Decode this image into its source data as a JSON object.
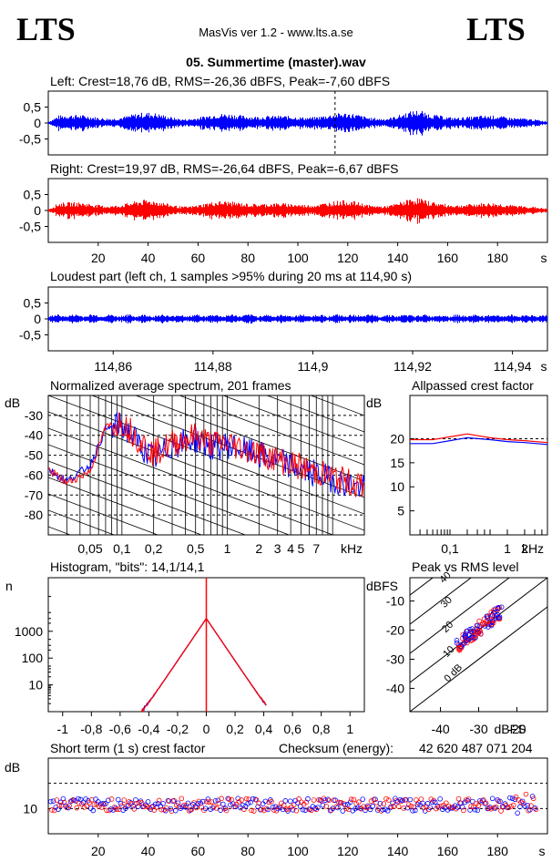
{
  "header": {
    "logo_left": "LTS",
    "logo_right": "LTS",
    "app_title": "MasVis ver 1.2 - www.lts.a.se",
    "file_title": "05. Summertime (master).wav"
  },
  "colors": {
    "left": "#0000ff",
    "right": "#ff0000",
    "grid": "#000000",
    "background": "#ffffff"
  },
  "chart_data": [
    {
      "id": "left-waveform",
      "type": "line",
      "title": "Left: Crest=18,76 dB, RMS=-26,36 dBFS, Peak=-7,60 dBFS",
      "yticks": [
        "0,5",
        "0",
        "-0,5"
      ],
      "ylim": [
        -1,
        1
      ],
      "xlim": [
        0,
        200
      ],
      "marker_x": 114.9,
      "color": "#0000ff"
    },
    {
      "id": "right-waveform",
      "type": "line",
      "title": "Right: Crest=19,97 dB, RMS=-26,64 dBFS, Peak=-6,67 dBFS",
      "yticks": [
        "0,5",
        "0",
        "-0,5"
      ],
      "ylim": [
        -1,
        1
      ],
      "xlim": [
        0,
        200
      ],
      "xticks": [
        "20",
        "40",
        "60",
        "80",
        "100",
        "120",
        "140",
        "160",
        "180"
      ],
      "xunit": "s",
      "color": "#ff0000"
    },
    {
      "id": "loudest-part",
      "type": "line",
      "title": "Loudest part (left  ch, 1 samples >95% during 20 ms at 114,90 s)",
      "yticks": [
        "0,5",
        "0",
        "-0,5"
      ],
      "ylim": [
        -1,
        1
      ],
      "xlim": [
        114.847,
        114.947
      ],
      "xticks": [
        "114,86",
        "114,88",
        "114,9",
        "114,92",
        "114,94"
      ],
      "xunit": "s",
      "color": "#0000ff"
    },
    {
      "id": "spectrum",
      "type": "line",
      "title": "Normalized average spectrum, 201 frames",
      "ylabel": "dB",
      "yticks": [
        "-30",
        "-40",
        "-50",
        "-60",
        "-70",
        "-80"
      ],
      "ylim": [
        -90,
        -20
      ],
      "xticks": [
        "0,05",
        "0,1",
        "0,2",
        "0,5",
        "1",
        "2",
        "3",
        "4",
        "5",
        "7"
      ],
      "xunit": "kHz",
      "xlim": [
        0.02,
        20
      ],
      "xscale": "log",
      "series": [
        {
          "color": "#0000ff",
          "f": [
            0.02,
            0.03,
            0.05,
            0.07,
            0.1,
            0.15,
            0.2,
            0.3,
            0.5,
            0.7,
            1,
            2,
            3,
            5,
            10,
            20
          ],
          "db": [
            -57,
            -63,
            -55,
            -37,
            -35,
            -45,
            -52,
            -45,
            -42,
            -46,
            -45,
            -50,
            -53,
            -57,
            -62,
            -67
          ]
        },
        {
          "color": "#ff0000",
          "f": [
            0.02,
            0.03,
            0.05,
            0.07,
            0.1,
            0.15,
            0.2,
            0.3,
            0.5,
            0.7,
            1,
            2,
            3,
            5,
            10,
            20
          ],
          "db": [
            -57,
            -64,
            -58,
            -36,
            -33,
            -43,
            -49,
            -44,
            -40,
            -44,
            -44,
            -49,
            -52,
            -56,
            -61,
            -66
          ]
        }
      ]
    },
    {
      "id": "allpass-crest",
      "type": "line",
      "title": "Allpassed crest factor",
      "ylabel": "dB",
      "yticks": [
        "20",
        "15",
        "10",
        "5"
      ],
      "ylim": [
        0,
        29
      ],
      "xticks": [
        "0,1",
        "1",
        "2"
      ],
      "xunit": "kHz",
      "xlim": [
        0.02,
        5
      ],
      "xscale": "log",
      "series": [
        {
          "color": "#0000ff",
          "f": [
            0.02,
            0.05,
            0.1,
            0.2,
            0.5,
            1,
            2,
            5
          ],
          "db": [
            19.0,
            19.0,
            19.6,
            20.2,
            19.8,
            19.4,
            19.2,
            18.8
          ]
        },
        {
          "color": "#ff0000",
          "f": [
            0.02,
            0.05,
            0.1,
            0.2,
            0.5,
            1,
            2,
            5
          ],
          "db": [
            19.8,
            19.8,
            20.4,
            21.0,
            20.2,
            19.8,
            19.6,
            19.2
          ]
        }
      ]
    },
    {
      "id": "histogram",
      "type": "line",
      "title": "Histogram, \"bits\": 14,1/14,1",
      "ylabel": "n",
      "yticks": [
        "1000",
        "100",
        "10"
      ],
      "yscale": "log",
      "ylim": [
        1,
        100000
      ],
      "xticks": [
        "-1",
        "-0,8",
        "-0,6",
        "-0,4",
        "-0,2",
        "0",
        "0,2",
        "0,4",
        "0,6",
        "0,8",
        "1"
      ],
      "xlim": [
        -1.1,
        1.1
      ],
      "peak_count": 3000,
      "extent_left": -0.45,
      "extent_right": 0.42
    },
    {
      "id": "peak-vs-rms",
      "type": "scatter",
      "title": "Peak vs RMS level",
      "ylabel": "dBFS",
      "xlabel": "dBFS",
      "yticks": [
        "-10",
        "-20",
        "-30",
        "-40"
      ],
      "ylim": [
        -48,
        -2
      ],
      "xticks": [
        "-40",
        "-30",
        "-20"
      ],
      "xlim": [
        -48,
        -12
      ],
      "diagonal_labels": [
        "40",
        "30",
        "20",
        "10",
        "0 dB"
      ],
      "points_center": [
        [
          -33,
          -25
        ],
        [
          -31,
          -22
        ],
        [
          -29,
          -19
        ],
        [
          -27,
          -16
        ],
        [
          -25,
          -14
        ],
        [
          -35,
          -28
        ],
        [
          -37,
          -31
        ],
        [
          -28,
          -21
        ],
        [
          -26,
          -18
        ]
      ]
    },
    {
      "id": "short-term-crest",
      "type": "scatter",
      "title": "Short term (1 s) crest factor",
      "checksum_label": "Checksum (energy):",
      "checksum_value": "42 620 487 071 204",
      "ylabel": "dB",
      "yticks": [
        "10"
      ],
      "ylim": [
        0,
        30
      ],
      "xlim": [
        0,
        200
      ],
      "xticks": [
        "20",
        "40",
        "60",
        "80",
        "100",
        "120",
        "140",
        "160",
        "180"
      ],
      "xunit": "s",
      "dashed_levels": [
        10,
        20
      ],
      "mean_crest": 11.5
    }
  ]
}
